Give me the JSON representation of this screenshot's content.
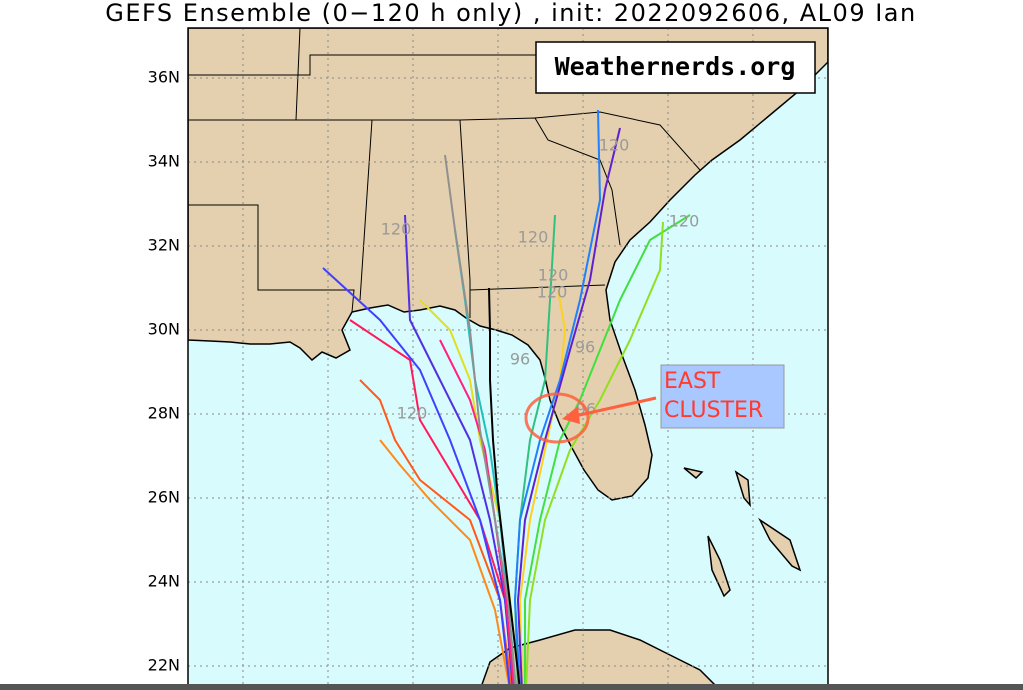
{
  "title": "GEFS Ensemble (0−120 h only) , init: 2022092606, AL09 Ian",
  "watermark": "Weathernerds.org",
  "annotation": [
    "EAST",
    "CLUSTER"
  ],
  "lat_labels": [
    "36N",
    "34N",
    "32N",
    "30N",
    "28N",
    "26N",
    "24N",
    "22N"
  ],
  "hour_labels": [
    "120",
    "120",
    "120",
    "120",
    "120",
    "120",
    "120",
    "96",
    "96",
    "96"
  ]
}
